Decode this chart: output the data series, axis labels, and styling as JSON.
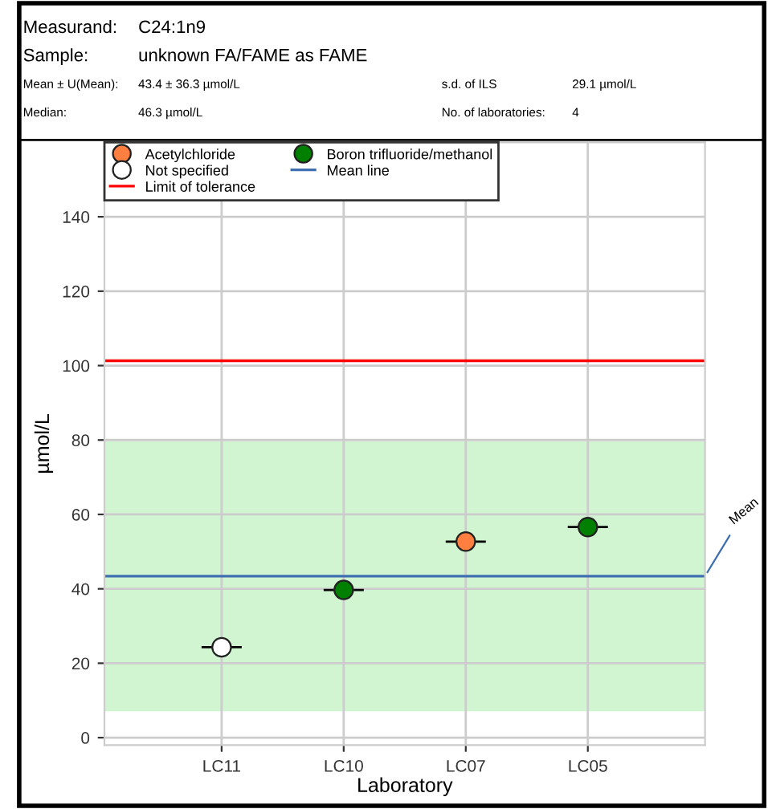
{
  "chart_data": {
    "type": "scatter",
    "annotations": [
      "Measurand:",
      "C24:1n9",
      "Sample:",
      "unknown FA/FAME as FAME",
      "Mean ± U(Mean):",
      "43.4 ± 36.3 µmol/L",
      "s.d. of ILS",
      "29.1 µmol/L",
      "Median:",
      "46.3 µmol/L",
      "No. of laboratories:",
      "4",
      "Mean"
    ],
    "xlabel": "Laboratory",
    "ylabel": "µmol/L",
    "categories": [
      "LC11",
      "LC10",
      "LC07",
      "LC05"
    ],
    "series": [
      {
        "name": "Acetylchloride",
        "color": "#ff7f40",
        "values": [
          null,
          null,
          52.7,
          null
        ]
      },
      {
        "name": "Not specified",
        "color": "#ffffff",
        "values": [
          24.3,
          null,
          null,
          null
        ]
      },
      {
        "name": "Boron trifluoride/methanol",
        "color": "#007f00",
        "values": [
          null,
          39.7,
          null,
          56.6
        ]
      }
    ],
    "ref_lines": [
      {
        "axis": "y",
        "value": 101.3,
        "label": "Limit of tolerance",
        "color": "#ff0000"
      },
      {
        "axis": "y",
        "value": 43.4,
        "label": "Mean line",
        "color": "#3f6fb0"
      }
    ],
    "bands": [
      {
        "axis": "y",
        "from": 7.1,
        "to": 79.7,
        "color": "#d0f5d0"
      }
    ],
    "ylim": [
      -2,
      160
    ],
    "yticks": [
      0,
      20,
      40,
      60,
      80,
      100,
      120,
      140
    ],
    "grid": true,
    "legend": "top",
    "marker": "circle"
  }
}
